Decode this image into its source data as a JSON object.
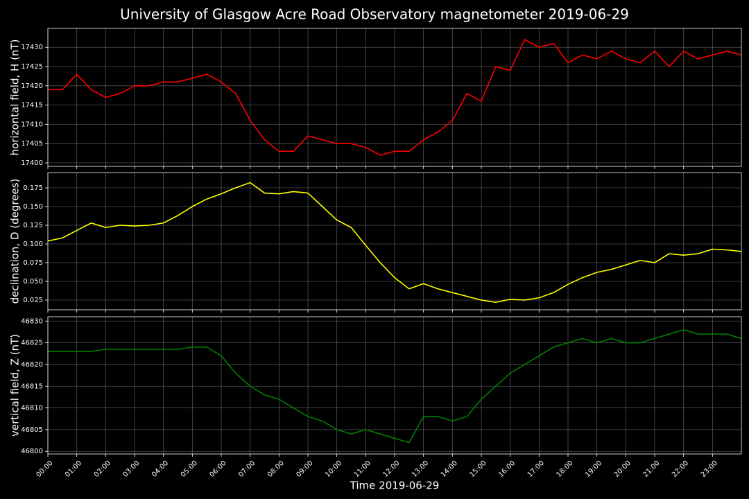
{
  "chart_data": [
    {
      "type": "line",
      "title": "University of Glasgow Acre Road Observatory magnetometer 2019-06-29",
      "ylabel": "horizontal field, H (nT)",
      "color": "#ff0000",
      "grid": true,
      "x": [
        0,
        0.5,
        1,
        1.5,
        2,
        2.5,
        3,
        3.5,
        4,
        4.5,
        5,
        5.5,
        6,
        6.5,
        7,
        7.5,
        8,
        8.5,
        9,
        9.5,
        10,
        10.5,
        11,
        11.5,
        12,
        12.5,
        13,
        13.5,
        14,
        14.5,
        15,
        15.5,
        16,
        16.5,
        17,
        17.5,
        18,
        18.5,
        19,
        19.5,
        20,
        20.5,
        21,
        21.5,
        22,
        22.5,
        23,
        23.5,
        24
      ],
      "values": [
        17419,
        17419,
        17423,
        17419,
        17417,
        17418,
        17420,
        17420,
        17421,
        17421,
        17422,
        17423,
        17421,
        17418,
        17411,
        17406,
        17403,
        17403,
        17407,
        17406,
        17405,
        17405,
        17404,
        17402,
        17403,
        17403,
        17406,
        17408,
        17411,
        17418,
        17416,
        17425,
        17424,
        17432,
        17430,
        17431,
        17426,
        17428,
        17427,
        17429,
        17427,
        17426,
        17429,
        17425,
        17429,
        17427,
        17428,
        17429,
        17428
      ],
      "xlim": [
        0,
        24
      ],
      "ylim": [
        17399.1,
        17434.9
      ],
      "yticks": [
        17400,
        17405,
        17410,
        17415,
        17420,
        17425,
        17430
      ]
    },
    {
      "type": "line",
      "ylabel": "declination, D (degrees)",
      "color": "#ffff00",
      "grid": true,
      "x": [
        0,
        0.5,
        1,
        1.5,
        2,
        2.5,
        3,
        3.5,
        4,
        4.5,
        5,
        5.5,
        6,
        6.5,
        7,
        7.5,
        8,
        8.5,
        9,
        9.5,
        10,
        10.5,
        11,
        11.5,
        12,
        12.5,
        13,
        13.5,
        14,
        14.5,
        15,
        15.5,
        16,
        16.5,
        17,
        17.5,
        18,
        18.5,
        19,
        19.5,
        20,
        20.5,
        21,
        21.5,
        22,
        22.5,
        23,
        23.5,
        24
      ],
      "values": [
        0.104,
        0.108,
        0.118,
        0.128,
        0.122,
        0.125,
        0.124,
        0.125,
        0.128,
        0.138,
        0.15,
        0.16,
        0.167,
        0.175,
        0.182,
        0.168,
        0.167,
        0.17,
        0.168,
        0.15,
        0.132,
        0.122,
        0.098,
        0.075,
        0.055,
        0.04,
        0.047,
        0.04,
        0.035,
        0.03,
        0.025,
        0.022,
        0.026,
        0.025,
        0.028,
        0.035,
        0.046,
        0.055,
        0.062,
        0.066,
        0.072,
        0.078,
        0.075,
        0.087,
        0.085,
        0.087,
        0.093,
        0.092,
        0.09
      ],
      "xlim": [
        0,
        24
      ],
      "ylim": [
        0.012,
        0.1954
      ],
      "yticks": [
        0.025,
        {
          "value": 0.05,
          "label": "0.050"
        },
        0.075,
        {
          "value": 0.1,
          "label": "0.100"
        },
        0.125,
        {
          "value": 0.15,
          "label": "0.150"
        },
        0.175
      ]
    },
    {
      "type": "line",
      "ylabel": "vertical field, Z (nT)",
      "xlabel": "Time 2019-06-29",
      "color": "#008000",
      "grid": true,
      "x": [
        0,
        0.5,
        1,
        1.5,
        2,
        2.5,
        3,
        3.5,
        4,
        4.5,
        5,
        5.5,
        6,
        6.5,
        7,
        7.5,
        8,
        8.5,
        9,
        9.5,
        10,
        10.5,
        11,
        11.5,
        12,
        12.5,
        13,
        13.5,
        14,
        14.5,
        15,
        15.5,
        16,
        16.5,
        17,
        17.5,
        18,
        18.5,
        19,
        19.5,
        20,
        20.5,
        21,
        21.5,
        22,
        22.5,
        23,
        23.5,
        24
      ],
      "values": [
        46823,
        46823,
        46823,
        46823,
        46823.5,
        46823.5,
        46823.5,
        46823.5,
        46823.5,
        46823.5,
        46824,
        46824,
        46822,
        46818,
        46815,
        46813,
        46812,
        46810,
        46808,
        46807,
        46805,
        46804,
        46805,
        46804,
        46803,
        46802,
        46808,
        46808,
        46807,
        46808,
        46812,
        46815,
        46818,
        46820,
        46822,
        46824,
        46825,
        46826,
        46825,
        46826,
        46825,
        46825,
        46826,
        46827,
        46828,
        46827,
        46827,
        46827,
        46826
      ],
      "xlim": [
        0,
        24
      ],
      "ylim": [
        46799.4,
        46831.0
      ],
      "yticks": [
        46800,
        46805,
        46810,
        46815,
        46820,
        46825,
        46830
      ],
      "xticks": [
        {
          "value": 0,
          "label": "00:00"
        },
        {
          "value": 1,
          "label": "01:00"
        },
        {
          "value": 2,
          "label": "02:00"
        },
        {
          "value": 3,
          "label": "03:00"
        },
        {
          "value": 4,
          "label": "04:00"
        },
        {
          "value": 5,
          "label": "05:00"
        },
        {
          "value": 6,
          "label": "06:00"
        },
        {
          "value": 7,
          "label": "07:00"
        },
        {
          "value": 8,
          "label": "08:00"
        },
        {
          "value": 9,
          "label": "09:00"
        },
        {
          "value": 10,
          "label": "10:00"
        },
        {
          "value": 11,
          "label": "11:00"
        },
        {
          "value": 12,
          "label": "12:00"
        },
        {
          "value": 13,
          "label": "13:00"
        },
        {
          "value": 14,
          "label": "14:00"
        },
        {
          "value": 15,
          "label": "15:00"
        },
        {
          "value": 16,
          "label": "16:00"
        },
        {
          "value": 17,
          "label": "17:00"
        },
        {
          "value": 18,
          "label": "18:00"
        },
        {
          "value": 19,
          "label": "19:00"
        },
        {
          "value": 20,
          "label": "20:00"
        },
        {
          "value": 21,
          "label": "21:00"
        },
        {
          "value": 22,
          "label": "22:00"
        },
        {
          "value": 23,
          "label": "23:00"
        }
      ]
    }
  ]
}
